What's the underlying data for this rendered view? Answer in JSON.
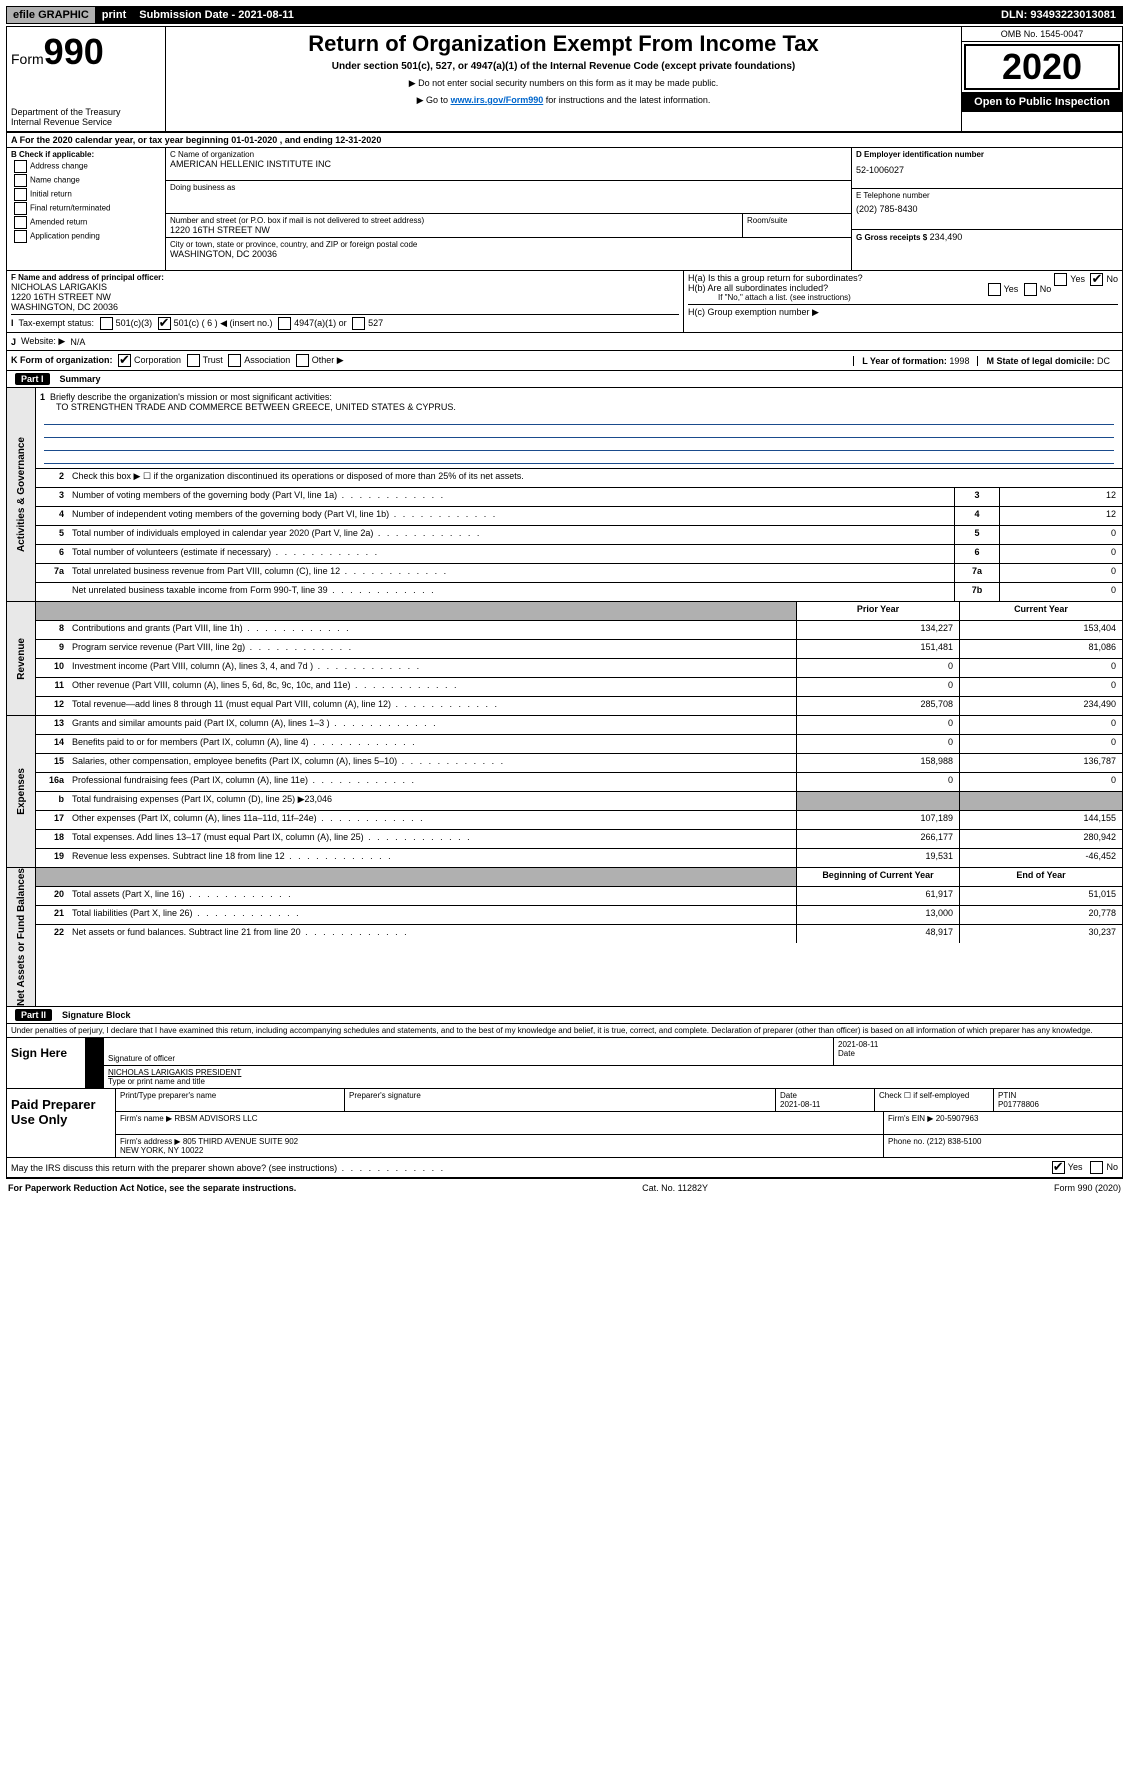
{
  "topbar": {
    "efile": "efile GRAPHIC",
    "print": "print",
    "subdate": "Submission Date - 2021-08-11",
    "dln": "DLN: 93493223013081"
  },
  "header": {
    "form_prefix": "Form",
    "form_no": "990",
    "dept": "Department of the Treasury\nInternal Revenue Service",
    "title": "Return of Organization Exempt From Income Tax",
    "subtitle": "Under section 501(c), 527, or 4947(a)(1) of the Internal Revenue Code (except private foundations)",
    "note1": "▶ Do not enter social security numbers on this form as it may be made public.",
    "note2_pre": "▶ Go to ",
    "note2_link": "www.irs.gov/Form990",
    "note2_post": " for instructions and the latest information.",
    "omb": "OMB No. 1545-0047",
    "year": "2020",
    "inspect": "Open to Public Inspection"
  },
  "lineA": "A  For the 2020 calendar year, or tax year beginning 01-01-2020    , and ending 12-31-2020",
  "colB": {
    "hd": "B Check if applicable:",
    "opts": [
      "Address change",
      "Name change",
      "Initial return",
      "Final return/terminated",
      "Amended return",
      "Application pending"
    ]
  },
  "colC": {
    "name_lbl": "C Name of organization",
    "name": "AMERICAN HELLENIC INSTITUTE INC",
    "dba_lbl": "Doing business as",
    "addr_lbl": "Number and street (or P.O. box if mail is not delivered to street address)",
    "room_lbl": "Room/suite",
    "addr": "1220 16TH STREET NW",
    "city_lbl": "City or town, state or province, country, and ZIP or foreign postal code",
    "city": "WASHINGTON, DC  20036"
  },
  "colD": {
    "d_lbl": "D Employer identification number",
    "ein": "52-1006027",
    "e_lbl": "E Telephone number",
    "phone": "(202) 785-8430",
    "g_lbl": "G Gross receipts $",
    "gross": "234,490"
  },
  "blockF": {
    "f_lbl": "F  Name and address of principal officer:",
    "f_name": "NICHOLAS LARIGAKIS",
    "f_addr1": "1220 16TH STREET NW",
    "f_addr2": "WASHINGTON, DC  20036",
    "ha": "H(a)  Is this a group return for subordinates?",
    "hb": "H(b)  Are all subordinates included?",
    "hb_note": "If \"No,\" attach a list. (see instructions)",
    "hc": "H(c)  Group exemption number ▶",
    "yes": "Yes",
    "no": "No"
  },
  "taxexempt": {
    "lbl": "Tax-exempt status:",
    "o1": "501(c)(3)",
    "o2": "501(c) ( 6 ) ◀ (insert no.)",
    "o3": "4947(a)(1) or",
    "o4": "527"
  },
  "lineJ": {
    "lbl": "Website: ▶",
    "val": "N/A"
  },
  "lineK": {
    "lbl": "K Form of organization:",
    "opts": [
      "Corporation",
      "Trust",
      "Association",
      "Other ▶"
    ],
    "l_lbl": "L Year of formation:",
    "l_val": "1998",
    "m_lbl": "M State of legal domicile:",
    "m_val": "DC"
  },
  "part1": {
    "no": "Part I",
    "title": "Summary"
  },
  "governance": {
    "tab": "Activities & Governance",
    "q1": "Briefly describe the organization's mission or most significant activities:",
    "mission": "TO STRENGTHEN TRADE AND COMMERCE BETWEEN GREECE, UNITED STATES & CYPRUS.",
    "q2": "Check this box ▶ ☐  if the organization discontinued its operations or disposed of more than 25% of its net assets.",
    "rows": [
      {
        "n": "3",
        "t": "Number of voting members of the governing body (Part VI, line 1a)",
        "k": "3",
        "v": "12"
      },
      {
        "n": "4",
        "t": "Number of independent voting members of the governing body (Part VI, line 1b)",
        "k": "4",
        "v": "12"
      },
      {
        "n": "5",
        "t": "Total number of individuals employed in calendar year 2020 (Part V, line 2a)",
        "k": "5",
        "v": "0"
      },
      {
        "n": "6",
        "t": "Total number of volunteers (estimate if necessary)",
        "k": "6",
        "v": "0"
      },
      {
        "n": "7a",
        "t": "Total unrelated business revenue from Part VIII, column (C), line 12",
        "k": "7a",
        "v": "0"
      },
      {
        "n": "",
        "t": "Net unrelated business taxable income from Form 990-T, line 39",
        "k": "7b",
        "v": "0"
      }
    ]
  },
  "cols": {
    "prior": "Prior Year",
    "current": "Current Year",
    "boy": "Beginning of Current Year",
    "eoy": "End of Year"
  },
  "revenue": {
    "tab": "Revenue",
    "rows": [
      {
        "n": "8",
        "t": "Contributions and grants (Part VIII, line 1h)",
        "p": "134,227",
        "c": "153,404"
      },
      {
        "n": "9",
        "t": "Program service revenue (Part VIII, line 2g)",
        "p": "151,481",
        "c": "81,086"
      },
      {
        "n": "10",
        "t": "Investment income (Part VIII, column (A), lines 3, 4, and 7d )",
        "p": "0",
        "c": "0"
      },
      {
        "n": "11",
        "t": "Other revenue (Part VIII, column (A), lines 5, 6d, 8c, 9c, 10c, and 11e)",
        "p": "0",
        "c": "0"
      },
      {
        "n": "12",
        "t": "Total revenue—add lines 8 through 11 (must equal Part VIII, column (A), line 12)",
        "p": "285,708",
        "c": "234,490"
      }
    ]
  },
  "expenses": {
    "tab": "Expenses",
    "rows": [
      {
        "n": "13",
        "t": "Grants and similar amounts paid (Part IX, column (A), lines 1–3 )",
        "p": "0",
        "c": "0"
      },
      {
        "n": "14",
        "t": "Benefits paid to or for members (Part IX, column (A), line 4)",
        "p": "0",
        "c": "0"
      },
      {
        "n": "15",
        "t": "Salaries, other compensation, employee benefits (Part IX, column (A), lines 5–10)",
        "p": "158,988",
        "c": "136,787"
      },
      {
        "n": "16a",
        "t": "Professional fundraising fees (Part IX, column (A), line 11e)",
        "p": "0",
        "c": "0"
      },
      {
        "n": "b",
        "t": "Total fundraising expenses (Part IX, column (D), line 25) ▶23,046",
        "p": "",
        "c": "",
        "grey": true
      },
      {
        "n": "17",
        "t": "Other expenses (Part IX, column (A), lines 11a–11d, 11f–24e)",
        "p": "107,189",
        "c": "144,155"
      },
      {
        "n": "18",
        "t": "Total expenses. Add lines 13–17 (must equal Part IX, column (A), line 25)",
        "p": "266,177",
        "c": "280,942"
      },
      {
        "n": "19",
        "t": "Revenue less expenses. Subtract line 18 from line 12",
        "p": "19,531",
        "c": "-46,452"
      }
    ]
  },
  "netassets": {
    "tab": "Net Assets or Fund Balances",
    "rows": [
      {
        "n": "20",
        "t": "Total assets (Part X, line 16)",
        "p": "61,917",
        "c": "51,015"
      },
      {
        "n": "21",
        "t": "Total liabilities (Part X, line 26)",
        "p": "13,000",
        "c": "20,778"
      },
      {
        "n": "22",
        "t": "Net assets or fund balances. Subtract line 21 from line 20",
        "p": "48,917",
        "c": "30,237"
      }
    ]
  },
  "part2": {
    "no": "Part II",
    "title": "Signature Block"
  },
  "perjury": "Under penalties of perjury, I declare that I have examined this return, including accompanying schedules and statements, and to the best of my knowledge and belief, it is true, correct, and complete. Declaration of preparer (other than officer) is based on all information of which preparer has any knowledge.",
  "sign": {
    "here": "Sign Here",
    "sig_lbl": "Signature of officer",
    "date_lbl": "Date",
    "date": "2021-08-11",
    "name": "NICHOLAS LARIGAKIS  PRESIDENT",
    "name_lbl": "Type or print name and title"
  },
  "paid": {
    "hd": "Paid Preparer Use Only",
    "h1": "Print/Type preparer's name",
    "h2": "Preparer's signature",
    "h3": "Date",
    "h3v": "2021-08-11",
    "h4": "Check ☐ if self-employed",
    "h5": "PTIN",
    "ptin": "P01778806",
    "firm_lbl": "Firm's name    ▶",
    "firm": "RBSM ADVISORS LLC",
    "ein_lbl": "Firm's EIN ▶",
    "ein": "20-5907963",
    "addr_lbl": "Firm's address ▶",
    "addr": "805 THIRD AVENUE SUITE 902\nNEW YORK, NY  10022",
    "phone_lbl": "Phone no.",
    "phone": "(212) 838-5100"
  },
  "discuss": {
    "q": "May the IRS discuss this return with the preparer shown above? (see instructions)",
    "yes": "Yes",
    "no": "No"
  },
  "footer": {
    "l": "For Paperwork Reduction Act Notice, see the separate instructions.",
    "m": "Cat. No. 11282Y",
    "r": "Form 990 (2020)"
  }
}
